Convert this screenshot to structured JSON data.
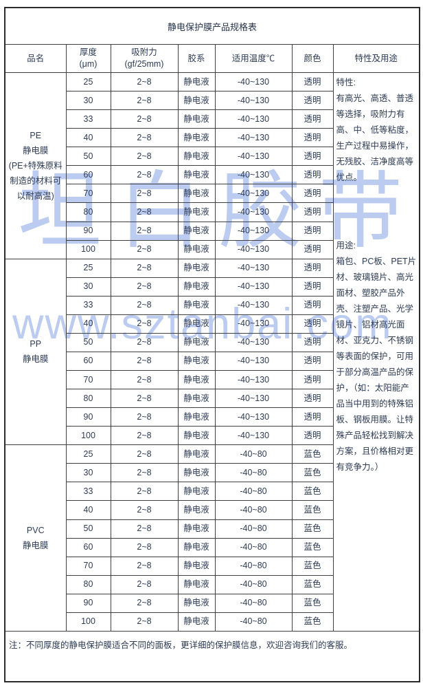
{
  "title": "静电保护膜产品规格表",
  "columns": [
    "品名",
    "厚度\n(μm)",
    "吸附力\n(gf/25mm)",
    "胶系",
    "适用温度℃",
    "颜色",
    "特性及用途"
  ],
  "sections": [
    {
      "name": "PE\n静电膜\n(PE+特殊原料\n制造的材料可\n以耐高温)",
      "rows": [
        [
          "25",
          "2~8",
          "静电液",
          "-40~130",
          "透明"
        ],
        [
          "30",
          "2~8",
          "静电液",
          "-40~130",
          "透明"
        ],
        [
          "33",
          "2~8",
          "静电液",
          "-40~130",
          "透明"
        ],
        [
          "40",
          "2~8",
          "静电液",
          "-40~130",
          "透明"
        ],
        [
          "50",
          "2~8",
          "静电液",
          "-40~130",
          "透明"
        ],
        [
          "60",
          "2~8",
          "静电液",
          "-40~130",
          "透明"
        ],
        [
          "70",
          "2~8",
          "静电液",
          "-40~130",
          "透明"
        ],
        [
          "80",
          "2~8",
          "静电液",
          "-40~130",
          "透明"
        ],
        [
          "90",
          "2~8",
          "静电液",
          "-40~130",
          "透明"
        ],
        [
          "100",
          "2~8",
          "静电液",
          "-40~130",
          "透明"
        ]
      ]
    },
    {
      "name": "PP\n静电膜",
      "rows": [
        [
          "25",
          "2~8",
          "静电液",
          "-40~130",
          "透明"
        ],
        [
          "30",
          "2~8",
          "静电液",
          "-40~130",
          "透明"
        ],
        [
          "33",
          "2~8",
          "静电液",
          "-40~130",
          "透明"
        ],
        [
          "40",
          "2~8",
          "静电液",
          "-40~130",
          "透明"
        ],
        [
          "50",
          "2~8",
          "静电液",
          "-40~130",
          "透明"
        ],
        [
          "60",
          "2~8",
          "静电液",
          "-40~130",
          "透明"
        ],
        [
          "70",
          "2~8",
          "静电液",
          "-40~130",
          "透明"
        ],
        [
          "80",
          "2~8",
          "静电液",
          "-40~130",
          "透明"
        ],
        [
          "90",
          "2~8",
          "静电液",
          "-40~130",
          "透明"
        ],
        [
          "100",
          "2~8",
          "静电液",
          "-40~130",
          "透明"
        ]
      ]
    },
    {
      "name": "PVC\n静电膜",
      "rows": [
        [
          "25",
          "2~8",
          "静电液",
          "-40~80",
          "蓝色"
        ],
        [
          "30",
          "2~8",
          "静电液",
          "-40~80",
          "蓝色"
        ],
        [
          "33",
          "2~8",
          "静电液",
          "-40~80",
          "蓝色"
        ],
        [
          "40",
          "2~8",
          "静电液",
          "-40~80",
          "蓝色"
        ],
        [
          "50",
          "2~8",
          "静电液",
          "-40~80",
          "蓝色"
        ],
        [
          "60",
          "2~8",
          "静电液",
          "-40~80",
          "蓝色"
        ],
        [
          "70",
          "2~8",
          "静电液",
          "-40~80",
          "蓝色"
        ],
        [
          "80",
          "2~8",
          "静电液",
          "-40~80",
          "蓝色"
        ],
        [
          "90",
          "2~8",
          "静电液",
          "-40~80",
          "蓝色"
        ],
        [
          "100",
          "2~8",
          "静电液",
          "-40~80",
          "蓝色"
        ]
      ]
    }
  ],
  "notes_cell": {
    "features_title": "特性:",
    "features_text": "有高光、高透、普透等选择，吸附力有高、中、低等粘度，生产过程中易操作，无残胶、洁净度高等优点。",
    "uses_title": "用途:",
    "uses_text": "箱包、PC板、PET片材、玻璃镜片、高光面材、塑胶产品外壳、注塑产品、光学镜片、铝材高光面材、亚克力、不锈钢等表面的保护，可用于部分高温产品的保护，（如：太阳能产品当中用到的特殊铝板、钢板用膜。让特殊产品轻松找到解决方案，且价格相对更有竞争力。）"
  },
  "footer_note": "注：不同厚度的静电保护膜适合不同的面板，更详细的保护膜信息，欢迎咨询我们的客服。",
  "watermark": {
    "brand_text": "坦白胶带",
    "url_text": "www.sztanbai.com"
  },
  "colors": {
    "text": "#2d3b55",
    "border": "#3f3f3f",
    "outer_border": "#2a2a2a",
    "watermark": "#bccbf0",
    "background": "#ffffff"
  }
}
